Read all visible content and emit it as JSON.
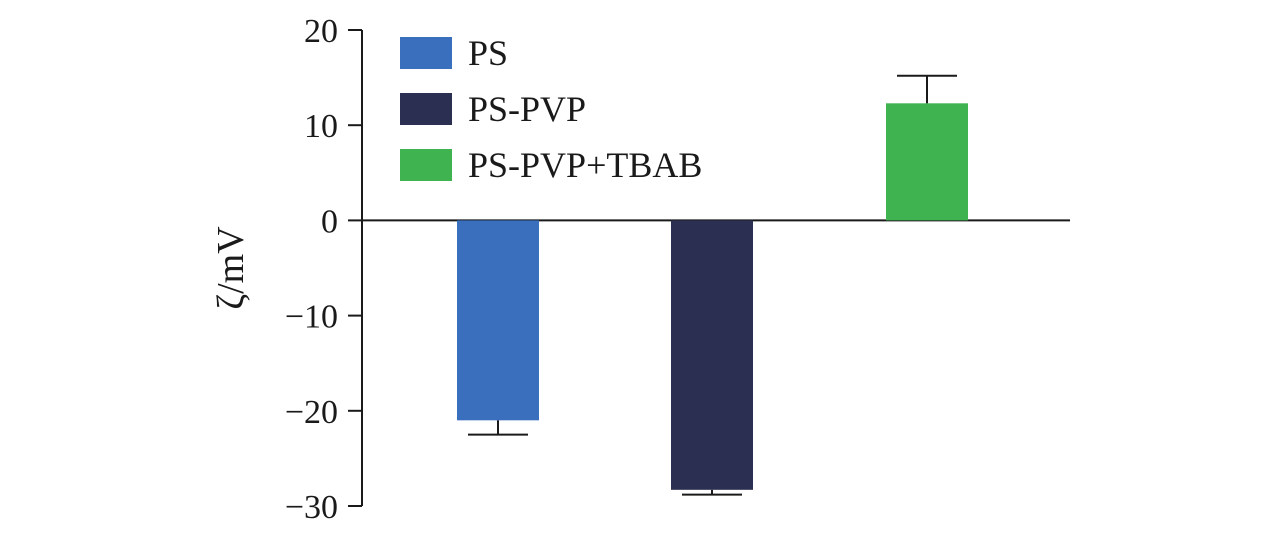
{
  "chart_data": {
    "type": "bar",
    "title": "",
    "xlabel": "",
    "ylabel": "ζ/mV",
    "ylim": [
      -30,
      20
    ],
    "yticks": [
      20,
      10,
      0,
      -10,
      -20,
      -30
    ],
    "ytick_labels": [
      "20",
      "10",
      "0",
      "−10",
      "−20",
      "−30"
    ],
    "grid": false,
    "legend_position": "top-left",
    "series": [
      {
        "name": "PS",
        "value": -21.0,
        "error": 1.5,
        "color": "#3a6fbd"
      },
      {
        "name": "PS-PVP",
        "value": -28.3,
        "error": 0.5,
        "color": "#2b2f52"
      },
      {
        "name": "PS-PVP+TBAB",
        "value": 12.3,
        "error": 2.9,
        "color": "#3fb34f"
      }
    ]
  }
}
